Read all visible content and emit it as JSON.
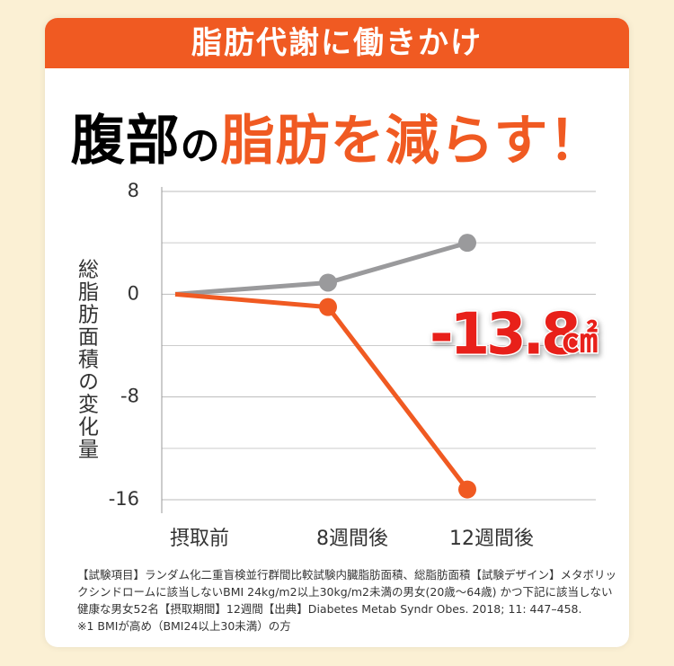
{
  "header": {
    "banner": "脂肪代謝に働きかけ",
    "headline": [
      "腹部",
      "の",
      "脂肪を減らす！"
    ]
  },
  "chart_data": {
    "type": "line",
    "y_label": "総脂肪面積の変化量",
    "categories": [
      "摂取前",
      "8週間後",
      "12週間後"
    ],
    "series": [
      {
        "color": "#9a9a9c",
        "values": [
          0,
          0.9,
          4
        ]
      },
      {
        "color": "#f05a22",
        "values": [
          0,
          -1,
          -15.2
        ]
      }
    ],
    "ylim": [
      -16,
      8
    ],
    "yticks": [
      8,
      0,
      -8,
      -16
    ],
    "minor_gridlines": [
      4,
      -4,
      -12
    ],
    "grid": true,
    "annotation": {
      "value": "-13.8",
      "unit": "㎠"
    }
  },
  "footnotes": [
    "【試験項目】ランダム化二重盲検並行群間比較試験内臓脂肪面積、総脂肪面積【試験デザイン】メタボリッ",
    "クシンドロームに該当しないBMI 24kg/m2以上30kg/m2未満の男女(20歳〜64歳) かつ下記に該当しない",
    "健康な男女52名【摂取期間】12週間【出典】Diabetes Metab Syndr Obes. 2018; 11: 447–458.",
    "※1 BMIが高め（BMI24以上30未満）の方"
  ]
}
